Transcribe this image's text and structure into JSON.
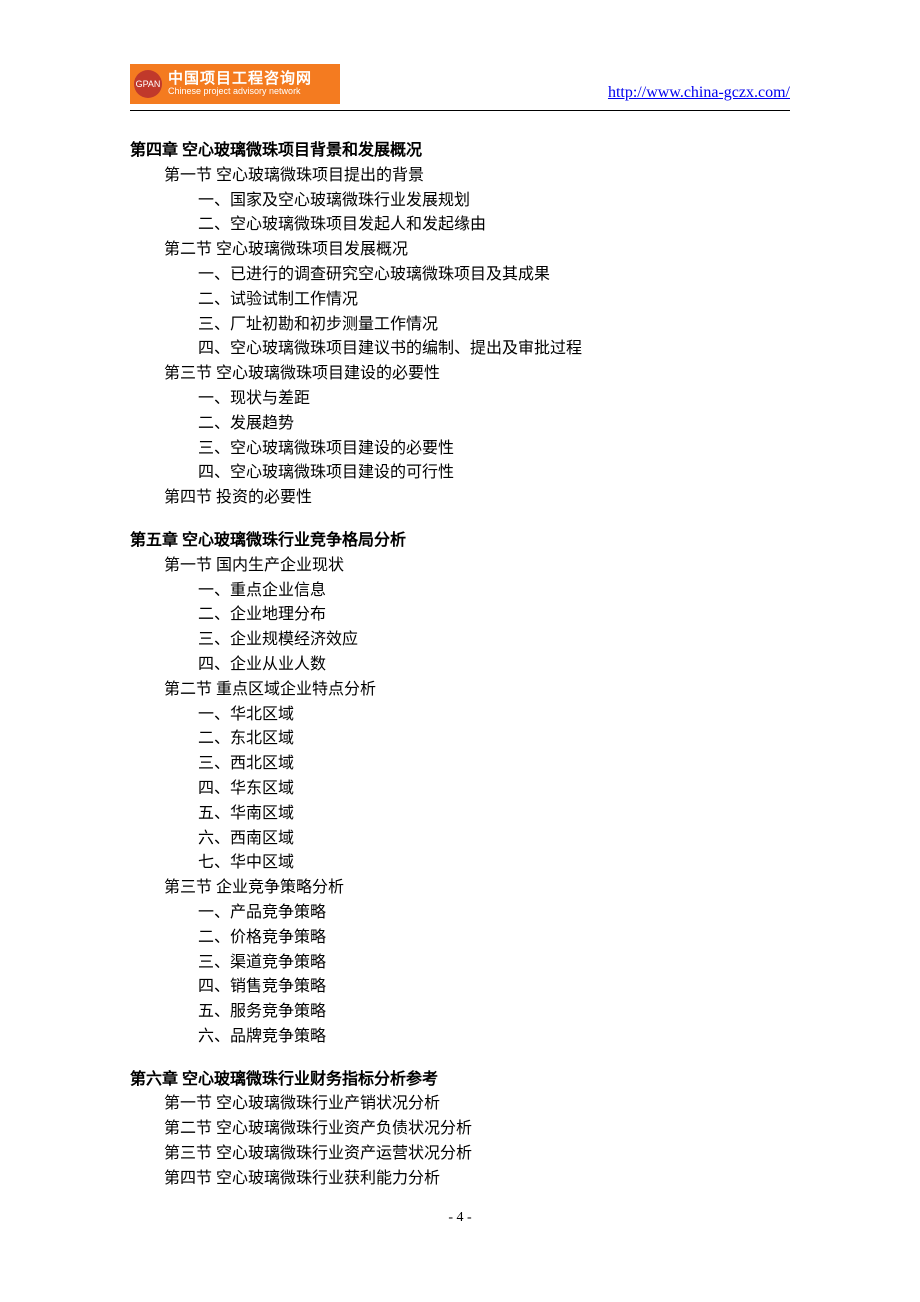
{
  "header": {
    "logo_badge": "GPAN",
    "logo_cn": "中国项目工程咨询网",
    "logo_en": "Chinese project advisory network",
    "url": "http://www.china-gczx.com/"
  },
  "chapters": [
    {
      "title": "第四章  空心玻璃微珠项目背景和发展概况",
      "sections": [
        {
          "label": "第一节  空心玻璃微珠项目提出的背景",
          "items": [
            "一、国家及空心玻璃微珠行业发展规划",
            "二、空心玻璃微珠项目发起人和发起缘由"
          ]
        },
        {
          "label": "第二节  空心玻璃微珠项目发展概况",
          "items": [
            "一、已进行的调查研究空心玻璃微珠项目及其成果",
            "二、试验试制工作情况",
            "三、厂址初勘和初步测量工作情况",
            "四、空心玻璃微珠项目建议书的编制、提出及审批过程"
          ]
        },
        {
          "label": "第三节  空心玻璃微珠项目建设的必要性",
          "items": [
            "一、现状与差距",
            "二、发展趋势",
            "三、空心玻璃微珠项目建设的必要性",
            "四、空心玻璃微珠项目建设的可行性"
          ]
        },
        {
          "label": "第四节    投资的必要性",
          "items": []
        }
      ]
    },
    {
      "title": "第五章  空心玻璃微珠行业竞争格局分析",
      "sections": [
        {
          "label": "第一节    国内生产企业现状",
          "items": [
            "一、重点企业信息",
            "二、企业地理分布",
            "三、企业规模经济效应",
            "四、企业从业人数"
          ]
        },
        {
          "label": "第二节    重点区域企业特点分析",
          "items": [
            "一、华北区域",
            "二、东北区域",
            "三、西北区域",
            "四、华东区域",
            "五、华南区域",
            "六、西南区域",
            "七、华中区域"
          ]
        },
        {
          "label": "第三节    企业竞争策略分析",
          "items": [
            "一、产品竞争策略",
            "二、价格竞争策略",
            "三、渠道竞争策略",
            "四、销售竞争策略",
            "五、服务竞争策略",
            "六、品牌竞争策略"
          ]
        }
      ]
    },
    {
      "title": "第六章  空心玻璃微珠行业财务指标分析参考",
      "sections": [
        {
          "label": "第一节  空心玻璃微珠行业产销状况分析",
          "items": []
        },
        {
          "label": "第二节  空心玻璃微珠行业资产负债状况分析",
          "items": []
        },
        {
          "label": "第三节  空心玻璃微珠行业资产运营状况分析",
          "items": []
        },
        {
          "label": "第四节  空心玻璃微珠行业获利能力分析",
          "items": []
        }
      ]
    }
  ],
  "page_number": "- 4 -"
}
